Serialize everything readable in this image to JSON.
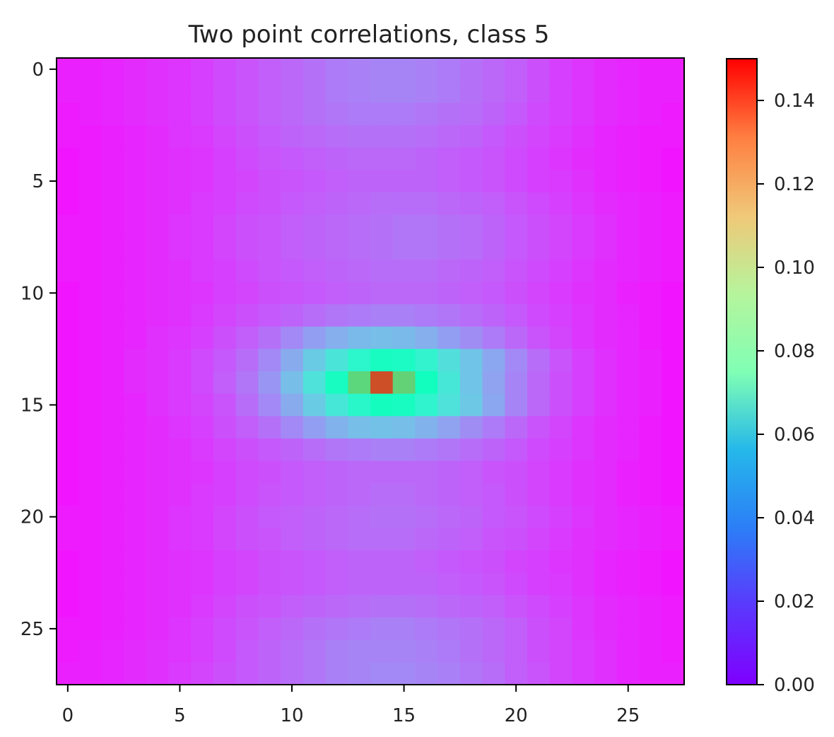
{
  "chart_data": {
    "type": "heatmap",
    "title": "Two point correlations, class 5",
    "xlabel": "",
    "ylabel": "",
    "rows": 28,
    "cols": 28,
    "x_ticks": [
      0,
      5,
      10,
      15,
      20,
      25
    ],
    "y_ticks": [
      0,
      5,
      10,
      15,
      20,
      25
    ],
    "xlim": [
      -0.5,
      27.5
    ],
    "ylim": [
      27.5,
      -0.5
    ],
    "colormap": "rainbow",
    "colorbar": {
      "vmin": 0.0,
      "vmax": 0.15,
      "ticks": [
        0.0,
        0.02,
        0.04,
        0.06,
        0.08,
        0.1,
        0.12,
        0.14
      ],
      "tick_labels": [
        "0.00",
        "0.02",
        "0.04",
        "0.06",
        "0.08",
        "0.10",
        "0.12",
        "0.14"
      ]
    },
    "peak": {
      "row": 14,
      "col": 14,
      "value": 0.135
    },
    "values": [
      [
        0.006,
        0.006,
        0.007,
        0.008,
        0.009,
        0.01,
        0.012,
        0.014,
        0.016,
        0.018,
        0.02,
        0.022,
        0.024,
        0.025,
        0.026,
        0.026,
        0.025,
        0.024,
        0.022,
        0.02,
        0.018,
        0.015,
        0.012,
        0.01,
        0.008,
        0.007,
        0.006,
        0.006
      ],
      [
        0.006,
        0.006,
        0.007,
        0.008,
        0.009,
        0.01,
        0.012,
        0.014,
        0.016,
        0.018,
        0.02,
        0.022,
        0.024,
        0.025,
        0.026,
        0.026,
        0.025,
        0.024,
        0.022,
        0.02,
        0.018,
        0.015,
        0.012,
        0.01,
        0.008,
        0.007,
        0.006,
        0.006
      ],
      [
        0.005,
        0.006,
        0.007,
        0.008,
        0.009,
        0.01,
        0.012,
        0.014,
        0.016,
        0.018,
        0.02,
        0.022,
        0.023,
        0.024,
        0.024,
        0.024,
        0.023,
        0.022,
        0.021,
        0.019,
        0.017,
        0.014,
        0.012,
        0.01,
        0.008,
        0.007,
        0.006,
        0.005
      ],
      [
        0.005,
        0.005,
        0.006,
        0.007,
        0.008,
        0.01,
        0.011,
        0.013,
        0.015,
        0.017,
        0.019,
        0.02,
        0.021,
        0.022,
        0.022,
        0.022,
        0.021,
        0.02,
        0.019,
        0.017,
        0.015,
        0.013,
        0.011,
        0.009,
        0.007,
        0.006,
        0.005,
        0.005
      ],
      [
        0.004,
        0.005,
        0.006,
        0.007,
        0.008,
        0.009,
        0.01,
        0.012,
        0.014,
        0.016,
        0.017,
        0.018,
        0.019,
        0.02,
        0.02,
        0.02,
        0.019,
        0.018,
        0.017,
        0.016,
        0.014,
        0.012,
        0.01,
        0.008,
        0.007,
        0.006,
        0.005,
        0.004
      ],
      [
        0.004,
        0.005,
        0.006,
        0.007,
        0.008,
        0.009,
        0.01,
        0.012,
        0.013,
        0.015,
        0.016,
        0.017,
        0.018,
        0.019,
        0.019,
        0.019,
        0.019,
        0.018,
        0.017,
        0.016,
        0.014,
        0.012,
        0.011,
        0.009,
        0.007,
        0.006,
        0.005,
        0.004
      ],
      [
        0.004,
        0.005,
        0.006,
        0.007,
        0.008,
        0.009,
        0.011,
        0.012,
        0.014,
        0.015,
        0.017,
        0.018,
        0.019,
        0.02,
        0.021,
        0.021,
        0.021,
        0.02,
        0.019,
        0.018,
        0.016,
        0.014,
        0.012,
        0.01,
        0.008,
        0.007,
        0.006,
        0.005
      ],
      [
        0.005,
        0.005,
        0.006,
        0.007,
        0.008,
        0.01,
        0.011,
        0.013,
        0.015,
        0.016,
        0.018,
        0.019,
        0.02,
        0.021,
        0.022,
        0.023,
        0.023,
        0.022,
        0.021,
        0.019,
        0.017,
        0.015,
        0.013,
        0.011,
        0.009,
        0.007,
        0.006,
        0.005
      ],
      [
        0.005,
        0.005,
        0.006,
        0.007,
        0.008,
        0.01,
        0.011,
        0.013,
        0.015,
        0.016,
        0.018,
        0.019,
        0.02,
        0.021,
        0.022,
        0.023,
        0.023,
        0.022,
        0.021,
        0.019,
        0.017,
        0.015,
        0.013,
        0.011,
        0.009,
        0.007,
        0.006,
        0.005
      ],
      [
        0.005,
        0.005,
        0.006,
        0.007,
        0.008,
        0.009,
        0.011,
        0.012,
        0.014,
        0.016,
        0.017,
        0.018,
        0.019,
        0.02,
        0.021,
        0.021,
        0.021,
        0.02,
        0.019,
        0.018,
        0.016,
        0.014,
        0.012,
        0.01,
        0.008,
        0.007,
        0.006,
        0.005
      ],
      [
        0.004,
        0.005,
        0.006,
        0.007,
        0.008,
        0.009,
        0.01,
        0.012,
        0.013,
        0.015,
        0.016,
        0.017,
        0.018,
        0.019,
        0.02,
        0.02,
        0.02,
        0.019,
        0.018,
        0.017,
        0.015,
        0.013,
        0.011,
        0.009,
        0.008,
        0.006,
        0.005,
        0.004
      ],
      [
        0.004,
        0.005,
        0.006,
        0.007,
        0.008,
        0.009,
        0.011,
        0.013,
        0.015,
        0.017,
        0.019,
        0.021,
        0.023,
        0.024,
        0.025,
        0.025,
        0.024,
        0.023,
        0.021,
        0.019,
        0.017,
        0.014,
        0.012,
        0.01,
        0.008,
        0.007,
        0.005,
        0.004
      ],
      [
        0.004,
        0.005,
        0.006,
        0.007,
        0.009,
        0.01,
        0.012,
        0.015,
        0.018,
        0.022,
        0.027,
        0.032,
        0.036,
        0.039,
        0.04,
        0.039,
        0.036,
        0.032,
        0.028,
        0.024,
        0.02,
        0.016,
        0.013,
        0.01,
        0.008,
        0.007,
        0.005,
        0.004
      ],
      [
        0.004,
        0.005,
        0.006,
        0.008,
        0.009,
        0.011,
        0.014,
        0.017,
        0.021,
        0.027,
        0.035,
        0.044,
        0.053,
        0.062,
        0.068,
        0.067,
        0.06,
        0.051,
        0.042,
        0.034,
        0.027,
        0.021,
        0.016,
        0.012,
        0.009,
        0.007,
        0.006,
        0.004
      ],
      [
        0.004,
        0.005,
        0.006,
        0.008,
        0.009,
        0.011,
        0.014,
        0.018,
        0.023,
        0.03,
        0.04,
        0.052,
        0.068,
        0.102,
        0.135,
        0.104,
        0.07,
        0.054,
        0.042,
        0.033,
        0.026,
        0.02,
        0.015,
        0.012,
        0.009,
        0.007,
        0.006,
        0.004
      ],
      [
        0.004,
        0.005,
        0.006,
        0.007,
        0.009,
        0.011,
        0.013,
        0.016,
        0.021,
        0.027,
        0.035,
        0.044,
        0.054,
        0.063,
        0.069,
        0.068,
        0.061,
        0.052,
        0.043,
        0.034,
        0.026,
        0.02,
        0.015,
        0.012,
        0.009,
        0.007,
        0.006,
        0.004
      ],
      [
        0.004,
        0.005,
        0.006,
        0.007,
        0.008,
        0.01,
        0.012,
        0.015,
        0.018,
        0.022,
        0.027,
        0.032,
        0.037,
        0.04,
        0.041,
        0.04,
        0.037,
        0.033,
        0.028,
        0.024,
        0.02,
        0.016,
        0.013,
        0.01,
        0.008,
        0.007,
        0.005,
        0.004
      ],
      [
        0.004,
        0.005,
        0.006,
        0.007,
        0.008,
        0.009,
        0.011,
        0.013,
        0.015,
        0.017,
        0.019,
        0.021,
        0.023,
        0.024,
        0.025,
        0.025,
        0.024,
        0.023,
        0.021,
        0.019,
        0.017,
        0.014,
        0.012,
        0.01,
        0.008,
        0.007,
        0.005,
        0.004
      ],
      [
        0.004,
        0.005,
        0.006,
        0.007,
        0.008,
        0.009,
        0.01,
        0.012,
        0.014,
        0.015,
        0.017,
        0.018,
        0.019,
        0.02,
        0.02,
        0.02,
        0.02,
        0.019,
        0.018,
        0.016,
        0.015,
        0.013,
        0.011,
        0.009,
        0.008,
        0.006,
        0.005,
        0.004
      ],
      [
        0.004,
        0.005,
        0.006,
        0.007,
        0.008,
        0.009,
        0.011,
        0.012,
        0.014,
        0.016,
        0.017,
        0.018,
        0.019,
        0.02,
        0.021,
        0.021,
        0.02,
        0.019,
        0.018,
        0.017,
        0.015,
        0.013,
        0.011,
        0.009,
        0.008,
        0.006,
        0.005,
        0.004
      ],
      [
        0.005,
        0.005,
        0.006,
        0.007,
        0.008,
        0.01,
        0.011,
        0.013,
        0.015,
        0.017,
        0.018,
        0.019,
        0.02,
        0.021,
        0.022,
        0.022,
        0.021,
        0.02,
        0.019,
        0.017,
        0.016,
        0.014,
        0.012,
        0.01,
        0.008,
        0.007,
        0.006,
        0.005
      ],
      [
        0.005,
        0.005,
        0.006,
        0.007,
        0.008,
        0.01,
        0.011,
        0.013,
        0.015,
        0.016,
        0.018,
        0.019,
        0.02,
        0.021,
        0.021,
        0.021,
        0.02,
        0.019,
        0.018,
        0.016,
        0.015,
        0.013,
        0.011,
        0.009,
        0.008,
        0.007,
        0.006,
        0.005
      ],
      [
        0.004,
        0.005,
        0.006,
        0.007,
        0.008,
        0.009,
        0.01,
        0.012,
        0.013,
        0.015,
        0.016,
        0.017,
        0.018,
        0.019,
        0.019,
        0.019,
        0.018,
        0.017,
        0.016,
        0.015,
        0.013,
        0.012,
        0.01,
        0.009,
        0.007,
        0.006,
        0.005,
        0.004
      ],
      [
        0.004,
        0.005,
        0.006,
        0.007,
        0.008,
        0.009,
        0.01,
        0.012,
        0.013,
        0.015,
        0.016,
        0.017,
        0.018,
        0.019,
        0.019,
        0.019,
        0.019,
        0.018,
        0.017,
        0.016,
        0.014,
        0.012,
        0.011,
        0.009,
        0.007,
        0.006,
        0.005,
        0.004
      ],
      [
        0.004,
        0.005,
        0.006,
        0.007,
        0.008,
        0.009,
        0.011,
        0.013,
        0.015,
        0.016,
        0.018,
        0.019,
        0.02,
        0.021,
        0.022,
        0.022,
        0.021,
        0.02,
        0.019,
        0.018,
        0.016,
        0.014,
        0.012,
        0.01,
        0.008,
        0.007,
        0.006,
        0.005
      ],
      [
        0.005,
        0.005,
        0.006,
        0.007,
        0.008,
        0.01,
        0.012,
        0.014,
        0.016,
        0.018,
        0.02,
        0.022,
        0.023,
        0.024,
        0.025,
        0.025,
        0.024,
        0.023,
        0.022,
        0.02,
        0.018,
        0.015,
        0.013,
        0.01,
        0.008,
        0.007,
        0.006,
        0.005
      ],
      [
        0.005,
        0.006,
        0.007,
        0.008,
        0.009,
        0.01,
        0.012,
        0.014,
        0.017,
        0.019,
        0.021,
        0.023,
        0.025,
        0.026,
        0.026,
        0.026,
        0.025,
        0.024,
        0.022,
        0.02,
        0.018,
        0.015,
        0.013,
        0.011,
        0.009,
        0.007,
        0.006,
        0.005
      ],
      [
        0.006,
        0.006,
        0.007,
        0.008,
        0.009,
        0.011,
        0.013,
        0.015,
        0.017,
        0.019,
        0.021,
        0.023,
        0.025,
        0.026,
        0.027,
        0.027,
        0.026,
        0.025,
        0.023,
        0.021,
        0.018,
        0.016,
        0.013,
        0.011,
        0.009,
        0.007,
        0.006,
        0.006
      ]
    ]
  }
}
